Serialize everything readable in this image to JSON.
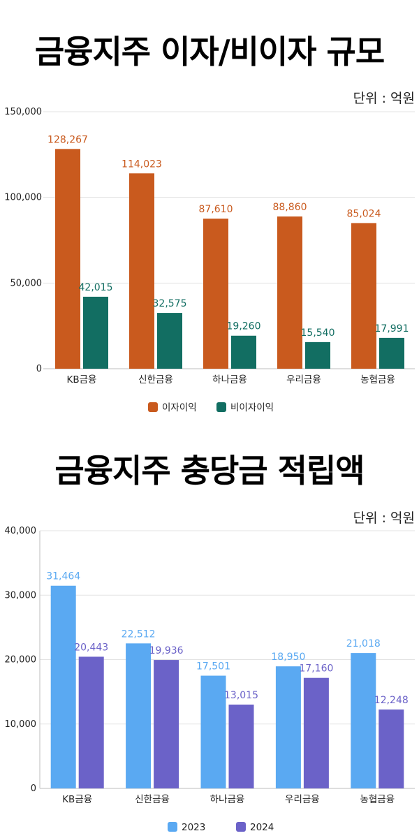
{
  "charts": [
    {
      "title": "금융지주 이자/비이자 규모",
      "unit": "단위 : 억원"
    },
    {
      "title": "금융지주 충당금 적립액",
      "unit": "단위 : 억원"
    }
  ],
  "chart_data": [
    {
      "type": "bar",
      "title": "금융지주 이자/비이자 규모",
      "categories": [
        "KB금융",
        "신한금융",
        "하나금융",
        "우리금융",
        "농협금융"
      ],
      "series": [
        {
          "name": "이자이익",
          "color": "#C95A1E",
          "values": [
            128267,
            114023,
            87610,
            88860,
            85024
          ],
          "labels": [
            "128,267",
            "114,023",
            "87,610",
            "88,860",
            "85,024"
          ]
        },
        {
          "name": "비이자이익",
          "color": "#126E62",
          "values": [
            42015,
            32575,
            19260,
            15540,
            17991
          ],
          "labels": [
            "42,015",
            "32,575",
            "19,260",
            "15,540",
            "17,991"
          ]
        }
      ],
      "ylim": [
        0,
        150000
      ],
      "yticks": [
        "0",
        "50,000",
        "100,000",
        "150,000"
      ],
      "ytick_values": [
        0,
        50000,
        100000,
        150000
      ],
      "grid": true,
      "legend": "bottom"
    },
    {
      "type": "bar",
      "title": "금융지주 충당금 적립액",
      "categories": [
        "KB금융",
        "신한금융",
        "하나금융",
        "우리금융",
        "농협금융"
      ],
      "series": [
        {
          "name": "2023",
          "color": "#5AA9F2",
          "values": [
            31464,
            22512,
            17501,
            18950,
            21018
          ],
          "labels": [
            "31,464",
            "22,512",
            "17,501",
            "18,950",
            "21,018"
          ]
        },
        {
          "name": "2024",
          "color": "#6B62C8",
          "values": [
            20443,
            19936,
            13015,
            17160,
            12248
          ],
          "labels": [
            "20,443",
            "19,936",
            "13,015",
            "17,160",
            "12,248"
          ]
        }
      ],
      "ylim": [
        0,
        40000
      ],
      "yticks": [
        "0",
        "10,000",
        "20,000",
        "30,000",
        "40,000"
      ],
      "ytick_values": [
        0,
        10000,
        20000,
        30000,
        40000
      ],
      "grid": true,
      "legend": "bottom"
    }
  ]
}
